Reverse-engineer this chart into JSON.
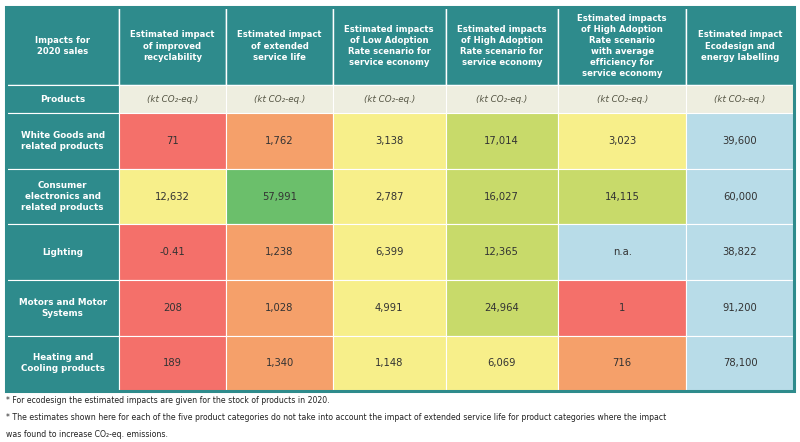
{
  "header_bg": "#2e8b8c",
  "header_text_color": "#ffffff",
  "row_label_bg": "#2e8b8c",
  "row_label_text_color": "#ffffff",
  "products_row_bg": "#2e8b8c",
  "products_row_text_color": "#ffffff",
  "unit_row_bg": "#eeeee0",
  "unit_row_text_color": "#555544",
  "footnote_text_line1": "* For ecodesign the estimated impacts are given for the stock of products in 2020.",
  "footnote_text_line2": "* The estimates shown here for each of the five product categories do not take into account the impact of extended service life for product categories where the impact",
  "footnote_text_line3": "was found to increase CO₂-eq. emissions.",
  "col_headers": [
    "Impacts for\n2020 sales",
    "Estimated impact\nof improved\nrecyclability",
    "Estimated impact\nof extended\nservice life",
    "Estimated impacts\nof Low Adoption\nRate scenario for\nservice economy",
    "Estimated impacts\nof High Adoption\nRate scenario for\nservice economy",
    "Estimated impacts\nof High Adoption\nRate scenario\nwith average\nefficiency for\nservice economy",
    "Estimated impact\nEcodesign and\nenergy labelling"
  ],
  "unit_labels": [
    "Products",
    "(kt CO₂-eq.)",
    "(kt CO₂-eq.)",
    "(kt CO₂-eq.)",
    "(kt CO₂-eq.)",
    "(kt CO₂-eq.)",
    "(kt CO₂-eq.)"
  ],
  "rows": [
    {
      "label": "White Goods and\nrelated products",
      "values": [
        "71",
        "1,762",
        "3,138",
        "17,014",
        "3,023",
        "39,600"
      ],
      "colors": [
        "#f4706a",
        "#f5a06a",
        "#f7ef8a",
        "#c8da6a",
        "#f7ef8a",
        "#b8dce8"
      ]
    },
    {
      "label": "Consumer\nelectronics and\nrelated products",
      "values": [
        "12,632",
        "57,991",
        "2,787",
        "16,027",
        "14,115",
        "60,000"
      ],
      "colors": [
        "#f7ef8a",
        "#6bbf6b",
        "#f7ef8a",
        "#c8da6a",
        "#c8da6a",
        "#b8dce8"
      ]
    },
    {
      "label": "Lighting",
      "values": [
        "-0.41",
        "1,238",
        "6,399",
        "12,365",
        "n.a.",
        "38,822"
      ],
      "colors": [
        "#f4706a",
        "#f5a06a",
        "#f7ef8a",
        "#c8da6a",
        "#b8dce8",
        "#b8dce8"
      ]
    },
    {
      "label": "Motors and Motor\nSystems",
      "values": [
        "208",
        "1,028",
        "4,991",
        "24,964",
        "1",
        "91,200"
      ],
      "colors": [
        "#f4706a",
        "#f5a06a",
        "#f7ef8a",
        "#c8da6a",
        "#f4706a",
        "#b8dce8"
      ]
    },
    {
      "label": "Heating and\nCooling products",
      "values": [
        "189",
        "1,340",
        "1,148",
        "6,069",
        "716",
        "78,100"
      ],
      "colors": [
        "#f4706a",
        "#f5a06a",
        "#f7ef8a",
        "#f7ef8a",
        "#f5a06a",
        "#b8dce8"
      ]
    }
  ],
  "col_widths_rel": [
    1.05,
    1.0,
    1.0,
    1.05,
    1.05,
    1.2,
    1.0
  ],
  "outer_border_color": "#2e8b8c",
  "divider_color": "#ffffff",
  "background_color": "#ffffff"
}
